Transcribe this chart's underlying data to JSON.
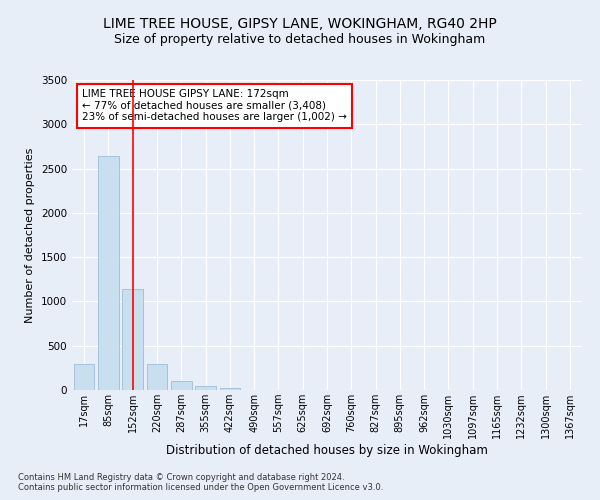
{
  "title": "LIME TREE HOUSE, GIPSY LANE, WOKINGHAM, RG40 2HP",
  "subtitle": "Size of property relative to detached houses in Wokingham",
  "xlabel": "Distribution of detached houses by size in Wokingham",
  "ylabel": "Number of detached properties",
  "bar_labels": [
    "17sqm",
    "85sqm",
    "152sqm",
    "220sqm",
    "287sqm",
    "355sqm",
    "422sqm",
    "490sqm",
    "557sqm",
    "625sqm",
    "692sqm",
    "760sqm",
    "827sqm",
    "895sqm",
    "962sqm",
    "1030sqm",
    "1097sqm",
    "1165sqm",
    "1232sqm",
    "1300sqm",
    "1367sqm"
  ],
  "bar_values": [
    295,
    2640,
    1140,
    295,
    100,
    45,
    20,
    0,
    0,
    0,
    0,
    0,
    0,
    0,
    0,
    0,
    0,
    0,
    0,
    0,
    0
  ],
  "bar_color": "#c8dff0",
  "bar_edge_color": "#a0bcd8",
  "red_line_x": 2,
  "annotation_title": "LIME TREE HOUSE GIPSY LANE: 172sqm",
  "annotation_line1": "← 77% of detached houses are smaller (3,408)",
  "annotation_line2": "23% of semi-detached houses are larger (1,002) →",
  "ylim": [
    0,
    3500
  ],
  "yticks": [
    0,
    500,
    1000,
    1500,
    2000,
    2500,
    3000,
    3500
  ],
  "footnote1": "Contains HM Land Registry data © Crown copyright and database right 2024.",
  "footnote2": "Contains public sector information licensed under the Open Government Licence v3.0.",
  "background_color": "#e8eef8",
  "grid_color": "#ffffff",
  "title_fontsize": 10,
  "subtitle_fontsize": 9,
  "tick_fontsize": 7,
  "ylabel_fontsize": 8,
  "xlabel_fontsize": 8.5,
  "annotation_fontsize": 7.5,
  "footnote_fontsize": 6
}
